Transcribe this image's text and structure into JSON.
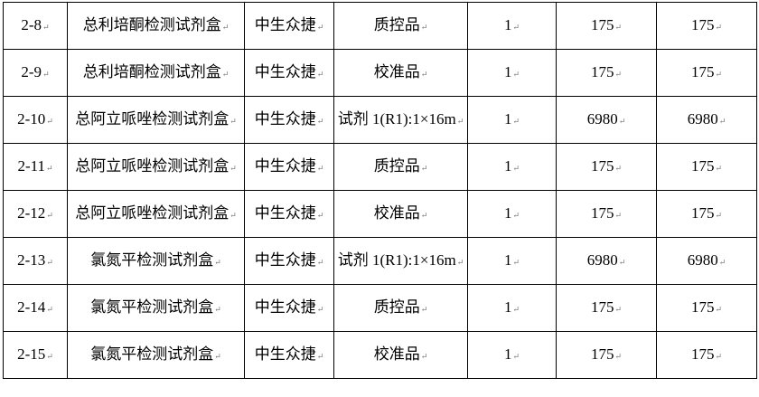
{
  "rows": [
    {
      "id": "2-8",
      "name": "总利培酮检测试剂盒",
      "maker": "中生众捷",
      "spec": "质控品",
      "qty": "1",
      "price": "175",
      "total": "175"
    },
    {
      "id": "2-9",
      "name": "总利培酮检测试剂盒",
      "maker": "中生众捷",
      "spec": "校准品",
      "qty": "1",
      "price": "175",
      "total": "175"
    },
    {
      "id": "2-10",
      "name": "总阿立哌唑检测试剂盒",
      "maker": "中生众捷",
      "spec": "试剂 1(R1):1×16m",
      "qty": "1",
      "price": "6980",
      "total": "6980"
    },
    {
      "id": "2-11",
      "name": "总阿立哌唑检测试剂盒",
      "maker": "中生众捷",
      "spec": "质控品",
      "qty": "1",
      "price": "175",
      "total": "175"
    },
    {
      "id": "2-12",
      "name": "总阿立哌唑检测试剂盒",
      "maker": "中生众捷",
      "spec": "校准品",
      "qty": "1",
      "price": "175",
      "total": "175"
    },
    {
      "id": "2-13",
      "name": "氯氮平检测试剂盒",
      "maker": "中生众捷",
      "spec": "试剂 1(R1):1×16m",
      "qty": "1",
      "price": "6980",
      "total": "6980"
    },
    {
      "id": "2-14",
      "name": "氯氮平检测试剂盒",
      "maker": "中生众捷",
      "spec": "质控品",
      "qty": "1",
      "price": "175",
      "total": "175"
    },
    {
      "id": "2-15",
      "name": "氯氮平检测试剂盒",
      "maker": "中生众捷",
      "spec": "校准品",
      "qty": "1",
      "price": "175",
      "total": "175"
    }
  ]
}
